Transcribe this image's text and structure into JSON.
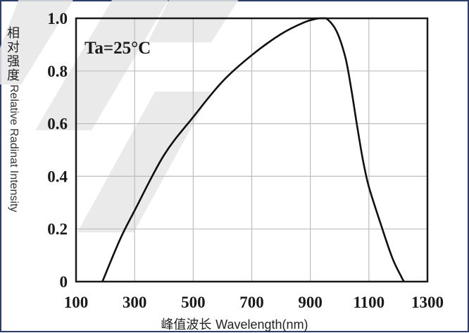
{
  "chart_data": {
    "type": "line",
    "xlabel_cn": "峰值波长",
    "xlabel_en": "Wavelength(nm)",
    "ylabel_cn": [
      "相",
      "对",
      "强",
      "度"
    ],
    "ylabel_en": "Relative Radinat Intensity",
    "annotation": "Ta=25°C",
    "xlim": [
      100,
      1300
    ],
    "ylim": [
      0,
      1.0
    ],
    "xticks": [
      100,
      300,
      500,
      700,
      900,
      1100,
      1300
    ],
    "xtick_labels": [
      "100",
      "300",
      "500",
      "700",
      "900",
      "1100",
      "1300"
    ],
    "yticks": [
      0,
      0.2,
      0.4,
      0.6,
      0.8,
      1.0
    ],
    "ytick_labels": [
      "0",
      "0.2",
      "0.4",
      "0.6",
      "0.8",
      "1.0"
    ],
    "grid": true,
    "series": [
      {
        "x": [
          190,
          250,
          300,
          400,
          500,
          600,
          700,
          800,
          880,
          920,
          940,
          960,
          990,
          1020,
          1040,
          1060,
          1080,
          1100,
          1140,
          1180,
          1210,
          1220
        ],
        "y": [
          0.0,
          0.16,
          0.27,
          0.48,
          0.625,
          0.76,
          0.86,
          0.94,
          0.985,
          0.998,
          1.0,
          0.995,
          0.95,
          0.85,
          0.73,
          0.59,
          0.46,
          0.36,
          0.22,
          0.09,
          0.02,
          0.0
        ]
      }
    ],
    "line_color": "#111111",
    "grid_color": "#bdbdbd",
    "frame_color": "#1a1a1a",
    "border_color": "#2a3d6b"
  }
}
